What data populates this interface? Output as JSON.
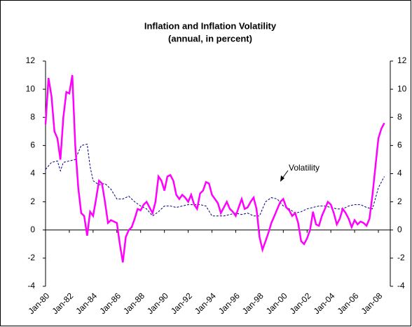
{
  "chart_data": {
    "type": "line",
    "title": "Inflation and Inflation Volatility",
    "subtitle": "(annual, in percent)",
    "annotation": "Volatility",
    "xlim": [
      1980,
      2009
    ],
    "xticks": [
      {
        "value": 1980,
        "label": "Jan-80"
      },
      {
        "value": 1982,
        "label": "Jan-82"
      },
      {
        "value": 1984,
        "label": "Jan-84"
      },
      {
        "value": 1986,
        "label": "Jan-86"
      },
      {
        "value": 1988,
        "label": "Jan-88"
      },
      {
        "value": 1990,
        "label": "Jan-90"
      },
      {
        "value": 1992,
        "label": "Jan-92"
      },
      {
        "value": 1994,
        "label": "Jan-94"
      },
      {
        "value": 1996,
        "label": "Jan-96"
      },
      {
        "value": 1998,
        "label": "Jan-98"
      },
      {
        "value": 2000,
        "label": "Jan-00"
      },
      {
        "value": 2002,
        "label": "Jan-02"
      },
      {
        "value": 2004,
        "label": "Jan-04"
      },
      {
        "value": 2006,
        "label": "Jan-06"
      },
      {
        "value": 2008,
        "label": "Jan-08"
      }
    ],
    "ylim": [
      -4,
      12
    ],
    "yticks": [
      -4,
      -2,
      0,
      2,
      4,
      6,
      8,
      10,
      12
    ],
    "y2lim": [
      -4,
      12
    ],
    "y2ticks": [
      -4,
      -2,
      0,
      2,
      4,
      6,
      8,
      10,
      12
    ],
    "series": [
      {
        "color": "#ff00ff",
        "dash": false,
        "x": [
          1980,
          1980.25,
          1980.5,
          1980.75,
          1981,
          1981.25,
          1981.5,
          1981.75,
          1982,
          1982.25,
          1982.5,
          1982.75,
          1983,
          1983.25,
          1983.5,
          1983.75,
          1984,
          1984.25,
          1984.5,
          1984.75,
          1985,
          1985.25,
          1985.5,
          1985.75,
          1986,
          1986.25,
          1986.5,
          1986.75,
          1987,
          1987.25,
          1987.5,
          1987.75,
          1988,
          1988.25,
          1988.5,
          1988.75,
          1989,
          1989.25,
          1989.5,
          1989.75,
          1990,
          1990.25,
          1990.5,
          1990.75,
          1991,
          1991.25,
          1991.5,
          1991.75,
          1992,
          1992.25,
          1992.5,
          1992.75,
          1993,
          1993.25,
          1993.5,
          1993.75,
          1994,
          1994.25,
          1994.5,
          1994.75,
          1995,
          1995.25,
          1995.5,
          1995.75,
          1996,
          1996.25,
          1996.5,
          1996.75,
          1997,
          1997.25,
          1997.5,
          1997.75,
          1998,
          1998.25,
          1998.5,
          1998.75,
          1999,
          1999.25,
          1999.5,
          1999.75,
          2000,
          2000.25,
          2000.5,
          2000.75,
          2001,
          2001.25,
          2001.5,
          2001.75,
          2002,
          2002.25,
          2002.5,
          2002.75,
          2003,
          2003.25,
          2003.5,
          2003.75,
          2004,
          2004.25,
          2004.5,
          2004.75,
          2005,
          2005.25,
          2005.5,
          2005.75,
          2006,
          2006.25,
          2006.5,
          2006.75,
          2007,
          2007.25,
          2007.5,
          2007.75,
          2008,
          2008.25,
          2008.5
        ],
        "values": [
          7.5,
          10.8,
          9.5,
          7,
          6.5,
          5,
          8,
          9.8,
          9.7,
          11,
          6,
          3,
          1.2,
          1,
          -0.4,
          1.3,
          1,
          2.2,
          3.5,
          3.3,
          2,
          0.5,
          0.7,
          0.6,
          0.5,
          -1,
          -2.3,
          -0.5,
          0,
          0.2,
          0.8,
          1.5,
          1.4,
          1.8,
          2,
          1.6,
          1.2,
          2,
          3.8,
          3.5,
          2.8,
          3.8,
          3.9,
          3.5,
          2.5,
          2.2,
          2.5,
          2.3,
          2,
          2.5,
          1.8,
          1.5,
          2.6,
          2.8,
          3.4,
          3.3,
          2.5,
          2.2,
          1.9,
          1.2,
          1.6,
          2,
          1.5,
          1.3,
          1,
          1.6,
          2.2,
          1.5,
          1.6,
          2,
          2.3,
          1.5,
          -0.5,
          -1.4,
          -0.8,
          -0.2,
          0.5,
          1,
          1.5,
          2,
          2.2,
          1.6,
          1.4,
          1,
          1.2,
          0.5,
          -0.8,
          -1,
          -0.6,
          0,
          1.3,
          0.4,
          0.3,
          1,
          1.5,
          2,
          1.8,
          1.2,
          0.4,
          0.8,
          1.5,
          1.2,
          0.8,
          0.2,
          0.7,
          0.4,
          0.6,
          0.5,
          0.3,
          0.8,
          2.5,
          4.5,
          6.5,
          7.2,
          7.6
        ]
      },
      {
        "color": "#000080",
        "dash": true,
        "x": [
          1980,
          1980.5,
          1981,
          1981.25,
          1981.5,
          1982,
          1982.5,
          1983,
          1983.5,
          1983.75,
          1984,
          1984.5,
          1985,
          1985.5,
          1986,
          1986.5,
          1987,
          1987.5,
          1988,
          1988.5,
          1989,
          1989.5,
          1990,
          1990.5,
          1991,
          1991.5,
          1992,
          1992.5,
          1993,
          1993.5,
          1994,
          1994.5,
          1995,
          1995.5,
          1996,
          1996.5,
          1997,
          1997.5,
          1998,
          1998.5,
          1999,
          1999.5,
          2000,
          2000.5,
          2001,
          2001.5,
          2002,
          2002.5,
          2003,
          2003.5,
          2004,
          2004.5,
          2005,
          2005.5,
          2006,
          2006.5,
          2007,
          2007.5,
          2008,
          2008.5
        ],
        "values": [
          4.3,
          4.8,
          4.9,
          4.2,
          4.8,
          4.9,
          5,
          6,
          6.1,
          4.5,
          3.5,
          3.2,
          3.3,
          2.9,
          2.2,
          2.2,
          2.4,
          2,
          1.7,
          1.5,
          1,
          1.3,
          1.7,
          1.7,
          1.6,
          1.7,
          1.8,
          1.8,
          1.8,
          1.7,
          1,
          1,
          1,
          1.1,
          1.2,
          1.1,
          1.2,
          1,
          1,
          2,
          2.3,
          2.2,
          1.7,
          1.5,
          1.2,
          1.3,
          1.5,
          1.6,
          1.7,
          1.7,
          1.6,
          1.5,
          1.5,
          1.7,
          1.8,
          1.8,
          1.6,
          1.5,
          3,
          3.8
        ]
      }
    ]
  }
}
